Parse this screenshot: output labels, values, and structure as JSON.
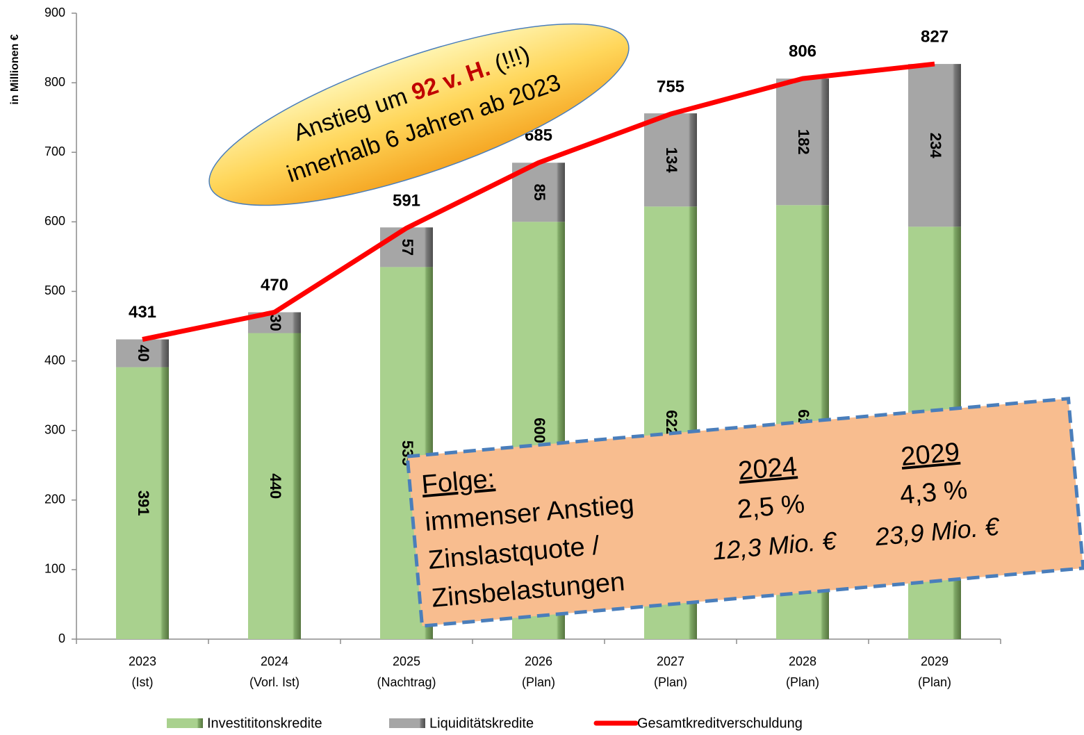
{
  "chart_data": {
    "type": "bar",
    "stacked": true,
    "y_axis_label": "in Millionen €",
    "categories": [
      [
        "2023",
        "(Ist)"
      ],
      [
        "2024",
        "(Vorl. Ist)"
      ],
      [
        "2025",
        "(Nachtrag)"
      ],
      [
        "2026",
        "(Plan)"
      ],
      [
        "2027",
        "(Plan)"
      ],
      [
        "2028",
        "(Plan)"
      ],
      [
        "2029",
        "(Plan)"
      ]
    ],
    "series": [
      {
        "name": "Investititonskredite",
        "type": "bar",
        "color": "#a9d18e",
        "values": [
          391,
          440,
          535,
          600,
          622,
          624,
          593
        ]
      },
      {
        "name": "Liquiditätskredite",
        "type": "bar",
        "color": "#a6a6a6",
        "values": [
          40,
          30,
          57,
          85,
          134,
          182,
          234
        ]
      },
      {
        "name": "Gesamtkreditverschuldung",
        "type": "line",
        "color": "#ff0000",
        "values": [
          431,
          470,
          591,
          685,
          755,
          806,
          827
        ]
      }
    ],
    "ylim": [
      0,
      900
    ],
    "yticks": [
      0,
      100,
      200,
      300,
      400,
      500,
      600,
      700,
      800,
      900
    ],
    "legend": "bottom",
    "ellipse_note": {
      "line1": [
        "Anstieg um ",
        "92 v. H.",
        " (!!!)"
      ],
      "line2": "innerhalb 6 Jahren ab 2023"
    },
    "box_note": {
      "heading": "Folge:",
      "labels": [
        "immenser Anstieg",
        "Zinslastquote /",
        "Zinsbelastungen"
      ],
      "columns": [
        {
          "year": "2024",
          "quote": "2,5 %",
          "amount": "12,3 Mio. €"
        },
        {
          "year": "2029",
          "quote": "4,3 %",
          "amount": "23,9 Mio. €"
        }
      ]
    }
  }
}
